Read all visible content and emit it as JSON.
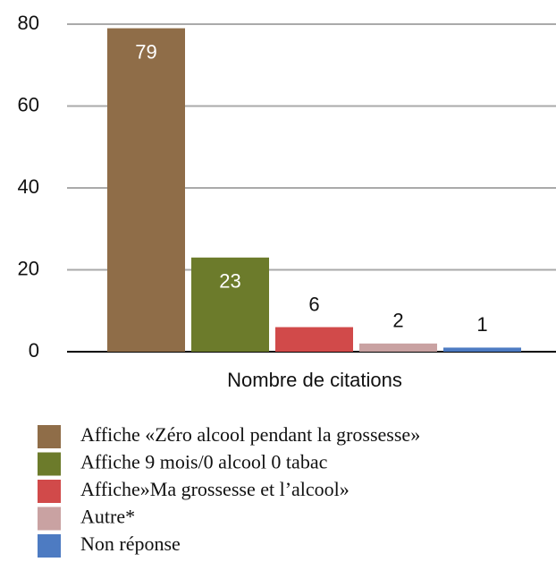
{
  "chart_data": {
    "type": "bar",
    "categories": [
      "Nombre de citations"
    ],
    "series": [
      {
        "name": "Affiche «Zéro alcool pendant la grossesse»",
        "color": "#8f6d48",
        "values": [
          79
        ]
      },
      {
        "name": "Affiche 9 mois/0 alcool 0 tabac",
        "color": "#6c7b2b",
        "values": [
          23
        ]
      },
      {
        "name": "Affiche»Ma grossesse et l’alcool»",
        "color": "#d14a4a",
        "values": [
          6
        ]
      },
      {
        "name": "Autre*",
        "color": "#c9a2a2",
        "values": [
          2
        ]
      },
      {
        "name": "Non réponse",
        "color": "#4d7bc2",
        "values": [
          1
        ]
      }
    ],
    "ylim": [
      0,
      80
    ],
    "yticks": [
      0,
      20,
      40,
      60,
      80
    ],
    "grid": true
  }
}
